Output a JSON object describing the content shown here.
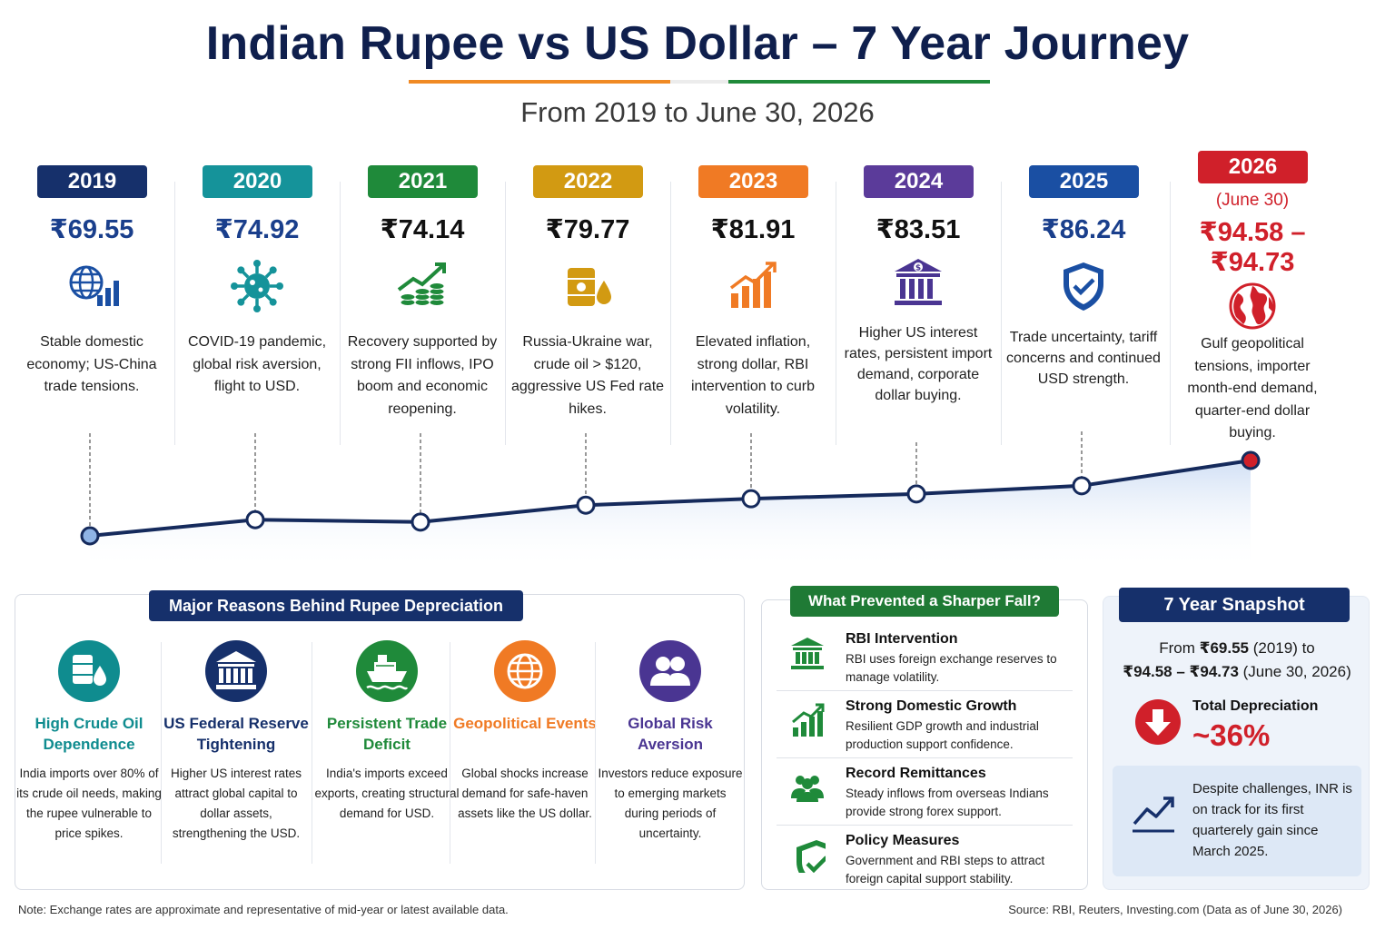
{
  "title": "Indian Rupee vs US Dollar – 7 Year Journey",
  "subtitle": "From 2019 to June 30, 2026",
  "colors": {
    "navy": "#14296b",
    "saffron": "#f08a24",
    "green": "#1f8a3a",
    "red": "#d0202a"
  },
  "years": [
    {
      "year": "2019",
      "rate": "₹69.55",
      "desc": "Stable domestic economy; US-China trade tensions.",
      "color": "#16306b",
      "rate_color": "#1a3f8c",
      "icon": "globe-chart-icon"
    },
    {
      "year": "2020",
      "rate": "₹74.92",
      "desc": "COVID-19 pandemic, global risk aversion, flight to USD.",
      "color": "#15939a",
      "rate_color": "#1a3f8c",
      "icon": "virus-icon"
    },
    {
      "year": "2021",
      "rate": "₹74.14",
      "desc": "Recovery supported by strong FII inflows, IPO boom and economic reopening.",
      "color": "#1f8a3a",
      "rate_color": "#111111",
      "icon": "growth-coins-icon"
    },
    {
      "year": "2022",
      "rate": "₹79.77",
      "desc": "Russia-Ukraine war, crude oil > $120, aggressive US Fed rate hikes.",
      "color": "#d29a12",
      "rate_color": "#111111",
      "icon": "oil-barrel-icon"
    },
    {
      "year": "2023",
      "rate": "₹81.91",
      "desc": "Elevated inflation, strong dollar, RBI intervention to curb volatility.",
      "color": "#f07a24",
      "rate_color": "#111111",
      "icon": "bar-growth-icon"
    },
    {
      "year": "2024",
      "rate": "₹83.51",
      "desc": "Higher US interest rates, persistent import demand, corporate dollar buying.",
      "color": "#5b3b9a",
      "rate_color": "#111111",
      "icon": "bank-dollar-icon"
    },
    {
      "year": "2025",
      "rate": "₹86.24",
      "desc": "Trade uncertainty, tariff concerns and continued USD strength.",
      "color": "#1a4fa3",
      "rate_color": "#1a3f8c",
      "icon": "shield-check-icon"
    },
    {
      "year": "2026",
      "sub": "(June 30)",
      "rate": "₹94.58 –",
      "rate2": "₹94.73",
      "desc": "Gulf geopolitical tensions, importer month-end demand, quarter-end dollar buying.",
      "color": "#d0202a",
      "rate_color": "#d0202a",
      "icon": "earth-icon"
    }
  ],
  "chart_data": {
    "type": "line",
    "x": [
      "2019",
      "2020",
      "2021",
      "2022",
      "2023",
      "2024",
      "2025",
      "2026"
    ],
    "series": [
      {
        "values": [
          69.55,
          74.92,
          74.14,
          79.77,
          81.91,
          83.51,
          86.24,
          94.66
        ]
      }
    ]
  },
  "reasons": {
    "title": "Major Reasons Behind Rupee Depreciation",
    "items": [
      {
        "title": "High Crude Oil Dependence",
        "desc": "India imports over 80% of its crude oil needs, making the rupee vulnerable to price spikes.",
        "color": "#0f8c8f",
        "icon": "oil-drop-icon"
      },
      {
        "title": "US Federal Reserve Tightening",
        "desc": "Higher US interest rates attract global capital to dollar assets, strengthening the USD.",
        "color": "#16306b",
        "icon": "federal-bank-icon"
      },
      {
        "title": "Persistent Trade Deficit",
        "desc": "India's imports exceed exports, creating structural demand for USD.",
        "color": "#1f8a3a",
        "icon": "cargo-ship-icon"
      },
      {
        "title": "Geopolitical Events",
        "desc": "Global shocks increase demand for safe-haven assets like the US dollar.",
        "color": "#f07a24",
        "icon": "globe-icon"
      },
      {
        "title": "Global Risk Aversion",
        "desc": "Investors reduce exposure to emerging markets during periods of uncertainty.",
        "color": "#4a3592",
        "icon": "people-icon"
      }
    ]
  },
  "prevented": {
    "title": "What Prevented a Sharper Fall?",
    "items": [
      {
        "title": "RBI Intervention",
        "desc": "RBI uses foreign exchange reserves to manage volatility.",
        "icon": "bank-icon"
      },
      {
        "title": "Strong Domestic Growth",
        "desc": "Resilient GDP growth and industrial production support confidence.",
        "icon": "growth-chart-icon"
      },
      {
        "title": "Record Remittances",
        "desc": "Steady inflows from overseas Indians provide strong forex support.",
        "icon": "people-group-icon"
      },
      {
        "title": "Policy Measures",
        "desc": "Government and RBI steps to attract foreign capital support stability.",
        "icon": "shield-check-icon"
      }
    ]
  },
  "snapshot": {
    "title": "7 Year Snapshot",
    "line1_pre": "From ",
    "line1_val": "₹69.55",
    "line1_post": " (2019) to",
    "line2_val": "₹94.58 – ₹94.73",
    "line2_post": " (June 30, 2026)",
    "dep_label": "Total Depreciation",
    "dep_value": "~36%",
    "note": "Despite challenges, INR is on track for its first quarterely gain since March 2025."
  },
  "footer": {
    "note": "Note: Exchange rates are approximate and representative of mid-year or latest available data.",
    "source": "Source: RBI, Reuters, Investing.com (Data as of June 30, 2026)"
  }
}
